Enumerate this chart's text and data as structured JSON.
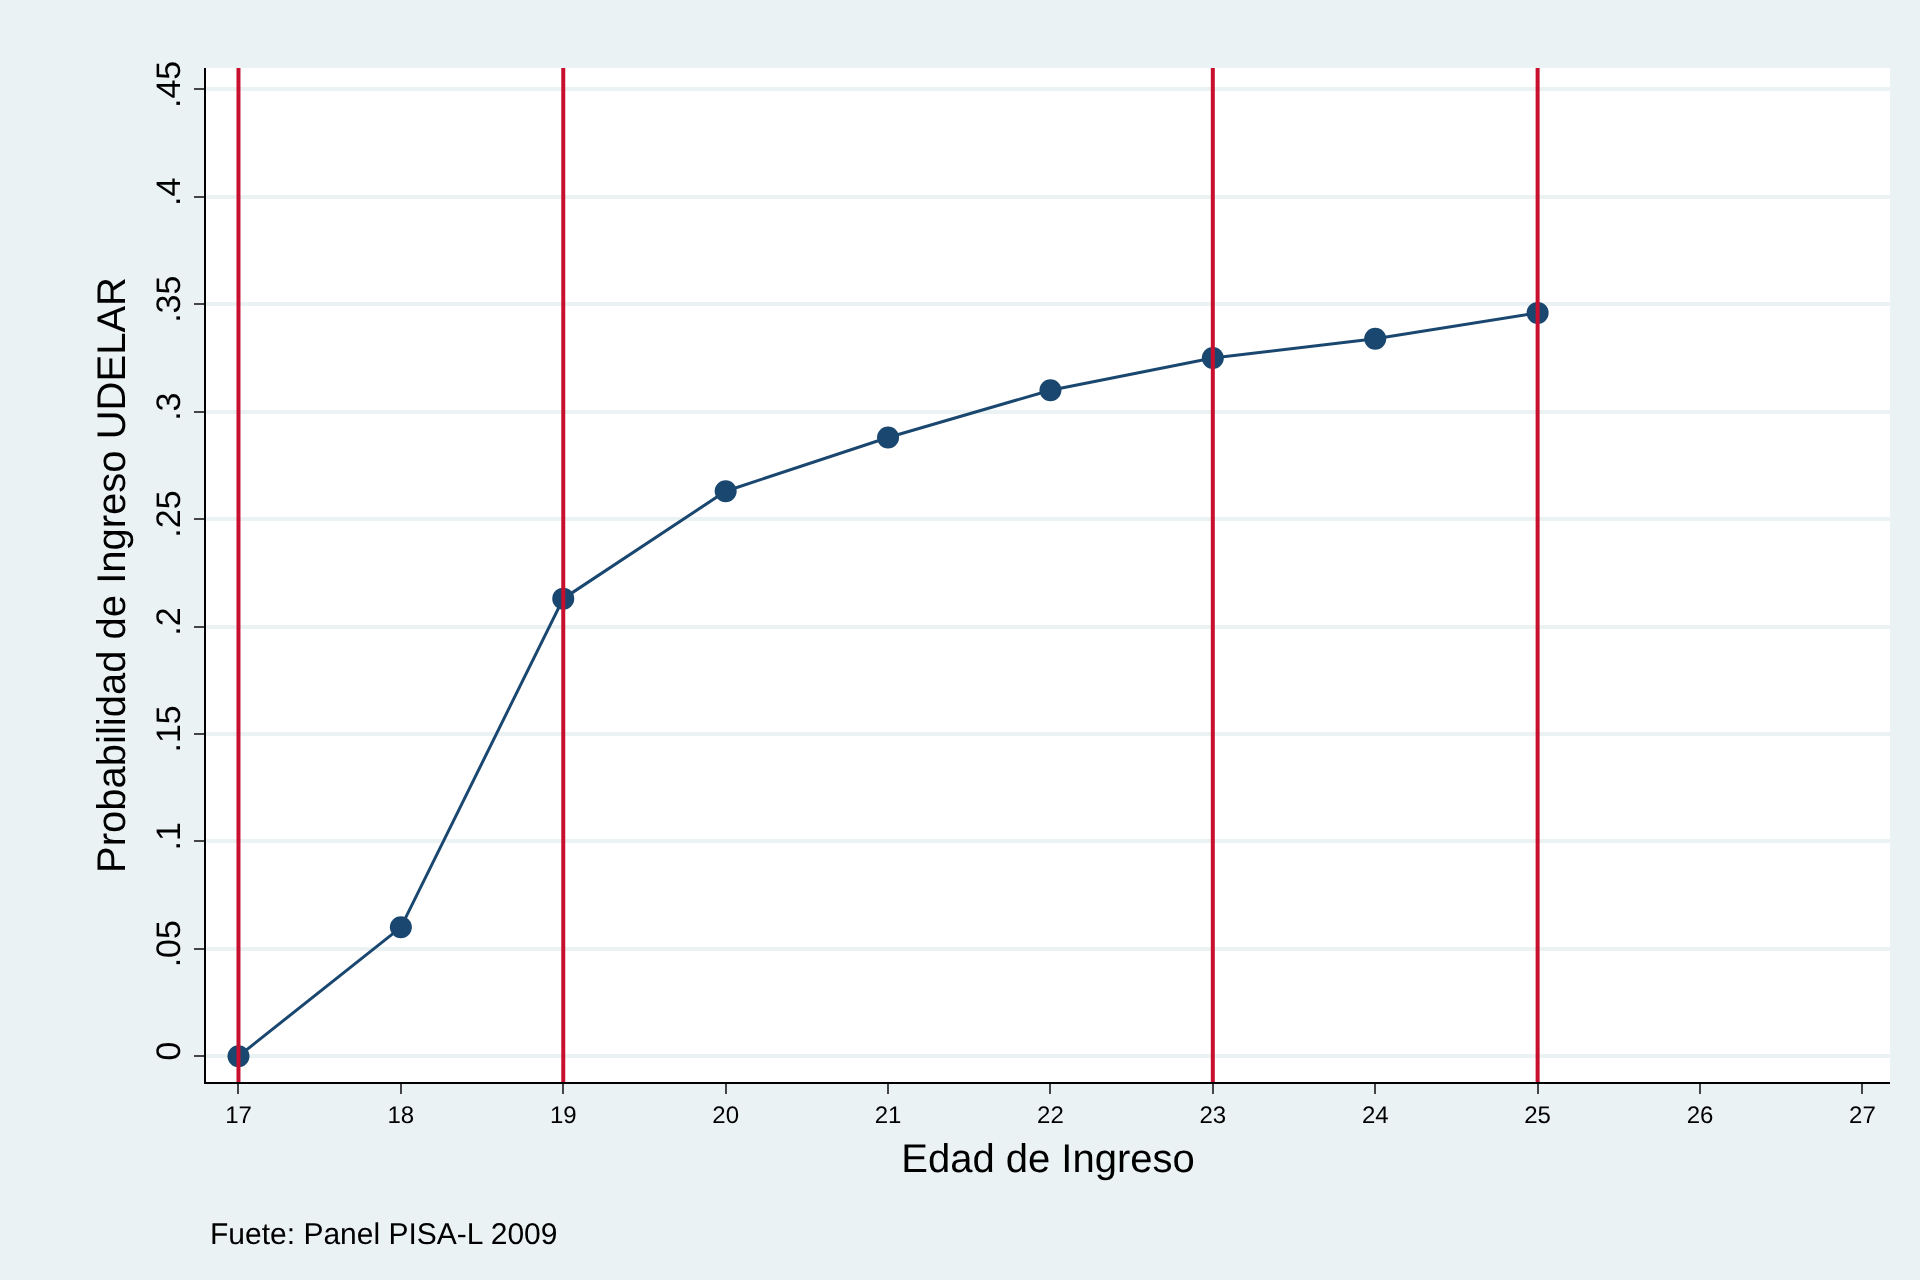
{
  "chart_data": {
    "type": "line",
    "xlabel": "Edad de Ingreso",
    "ylabel": "Probabilidad de Ingreso UDELAR",
    "x": [
      17,
      18,
      19,
      20,
      21,
      22,
      23,
      24,
      25
    ],
    "series": [
      {
        "color": "#1a476f",
        "values": [
          0,
          0.06,
          0.213,
          0.263,
          0.288,
          0.31,
          0.325,
          0.334,
          0.346
        ]
      }
    ],
    "xlim": [
      16.8,
      27.17
    ],
    "xticks": [
      17,
      18,
      19,
      20,
      21,
      22,
      23,
      24,
      25,
      26,
      27
    ],
    "ylim": [
      -0.012,
      0.46
    ],
    "yticks": [
      0,
      {
        "value": 0.05,
        "label": ".05"
      },
      {
        "value": 0.1,
        "label": ".1"
      },
      {
        "value": 0.15,
        "label": ".15"
      },
      {
        "value": 0.2,
        "label": ".2"
      },
      {
        "value": 0.25,
        "label": ".25"
      },
      {
        "value": 0.3,
        "label": ".3"
      },
      {
        "value": 0.35,
        "label": ".35"
      },
      {
        "value": 0.4,
        "label": ".4"
      },
      {
        "value": 0.45,
        "label": ".45"
      }
    ],
    "ref_lines": [
      {
        "axis": "x",
        "value": 17,
        "color": "#c8102e"
      },
      {
        "axis": "x",
        "value": 19,
        "color": "#c8102e"
      },
      {
        "axis": "x",
        "value": 23,
        "color": "#c8102e"
      },
      {
        "axis": "x",
        "value": 25,
        "color": "#c8102e"
      }
    ],
    "grid": "y",
    "marker": "circle",
    "line_style": "solid",
    "annotations": [
      "Fuete: Panel PISA-L 2009"
    ]
  }
}
